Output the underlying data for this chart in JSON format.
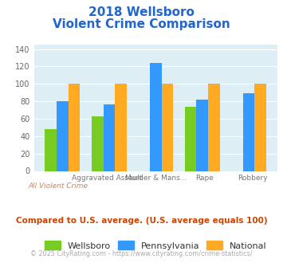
{
  "title_line1": "2018 Wellsboro",
  "title_line2": "Violent Crime Comparison",
  "wellsboro": [
    48,
    63,
    0,
    74,
    0
  ],
  "pennsylvania": [
    80,
    76,
    124,
    82,
    89
  ],
  "national": [
    100,
    100,
    100,
    100,
    100
  ],
  "colors": {
    "wellsboro": "#77cc22",
    "pennsylvania": "#3399ff",
    "national": "#ffaa22"
  },
  "ylim": [
    0,
    145
  ],
  "yticks": [
    0,
    20,
    40,
    60,
    80,
    100,
    120,
    140
  ],
  "title_color": "#2266cc",
  "bg_color": "#ddeef5",
  "legend_labels": [
    "Wellsboro",
    "Pennsylvania",
    "National"
  ],
  "note": "Compared to U.S. average. (U.S. average equals 100)",
  "footer": "© 2025 CityRating.com - https://www.cityrating.com/crime-statistics/",
  "note_color": "#cc4400",
  "footer_color": "#aaaaaa",
  "top_xlabels": [
    "",
    "Aggravated Assault",
    "Murder & Mans...",
    "Rape",
    "Robbery"
  ],
  "bot_xlabels": [
    "All Violent Crime",
    "",
    "",
    "",
    ""
  ]
}
